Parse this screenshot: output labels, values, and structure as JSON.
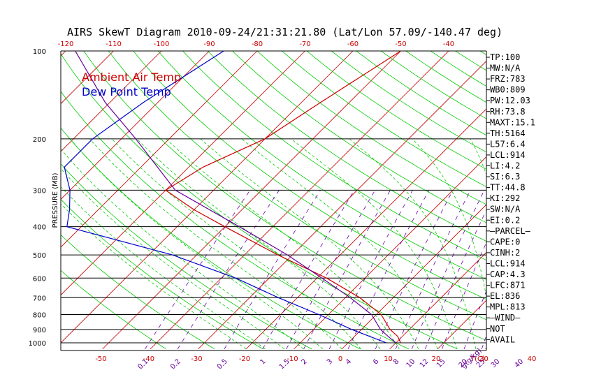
{
  "chart_data": {
    "type": "line",
    "title": "AIRS SkewT Diagram 2010-09-24/21:31:21.80 (Lat/Lon 57.09/-140.47 deg)",
    "ylabel": "PRESSURE (MB)",
    "pressure_ticks": [
      100,
      200,
      300,
      400,
      500,
      600,
      700,
      800,
      900,
      1000
    ],
    "temp_ticks_top": [
      -120,
      -110,
      -100,
      -90,
      -80,
      -70,
      -60,
      -50,
      -40
    ],
    "temp_ticks_bottom": [
      -50,
      -40,
      -30,
      -20,
      -10,
      0,
      10,
      20,
      30,
      40
    ],
    "temp_axis_label": "T(C)",
    "mixing_ratio_ticks": [
      "0.1",
      "0.2",
      "0.5",
      "1",
      "1.5",
      "2",
      "3",
      "4",
      "6",
      "8",
      "10",
      "12",
      "15",
      "20",
      "25",
      "30",
      "40"
    ],
    "mixing_ratio_label": "g(g/kg)",
    "ylim": [
      1050,
      100
    ],
    "legend": {
      "placement": "top-left"
    },
    "series": [
      {
        "name": "Ambient Air Temp",
        "color": "#cc0000",
        "points": [
          {
            "p": 100,
            "t": -50
          },
          {
            "p": 150,
            "t": -56
          },
          {
            "p": 200,
            "t": -60
          },
          {
            "p": 250,
            "t": -67
          },
          {
            "p": 300,
            "t": -70
          },
          {
            "p": 350,
            "t": -60
          },
          {
            "p": 400,
            "t": -50
          },
          {
            "p": 500,
            "t": -33
          },
          {
            "p": 600,
            "t": -18
          },
          {
            "p": 700,
            "t": -7
          },
          {
            "p": 800,
            "t": 1
          },
          {
            "p": 900,
            "t": 6
          },
          {
            "p": 950,
            "t": 9
          },
          {
            "p": 1000,
            "t": 11
          }
        ]
      },
      {
        "name": "Dew Point Temp",
        "color": "#0000cc",
        "points": [
          {
            "p": 100,
            "t": -87
          },
          {
            "p": 150,
            "t": -93
          },
          {
            "p": 200,
            "t": -96
          },
          {
            "p": 250,
            "t": -96
          },
          {
            "p": 300,
            "t": -90
          },
          {
            "p": 350,
            "t": -86
          },
          {
            "p": 400,
            "t": -83
          },
          {
            "p": 500,
            "t": -55
          },
          {
            "p": 600,
            "t": -37
          },
          {
            "p": 700,
            "t": -24
          },
          {
            "p": 800,
            "t": -12
          },
          {
            "p": 900,
            "t": -2
          },
          {
            "p": 1000,
            "t": 8
          }
        ]
      },
      {
        "name": "",
        "color": "#660099",
        "points": [
          {
            "p": 100,
            "t": -118
          },
          {
            "p": 150,
            "t": -101
          },
          {
            "p": 200,
            "t": -87
          },
          {
            "p": 300,
            "t": -68
          },
          {
            "p": 400,
            "t": -47
          },
          {
            "p": 500,
            "t": -31
          },
          {
            "p": 600,
            "t": -19
          },
          {
            "p": 700,
            "t": -9
          },
          {
            "p": 800,
            "t": -1
          },
          {
            "p": 900,
            "t": 4
          },
          {
            "p": 950,
            "t": 7
          },
          {
            "p": 1000,
            "t": 10
          }
        ]
      }
    ]
  },
  "indices": [
    "TP:100",
    "MW:N/A",
    "FRZ:783",
    "WB0:809",
    "PW:12.03",
    "RH:73.8",
    "MAXT:15.1",
    "TH:5164",
    "L57:6.4",
    "LCL:914",
    "LI:4.2",
    "SI:6.3",
    "TT:44.8",
    "KI:292",
    "SW:N/A",
    "EI:0.2",
    "—PARCEL—",
    "CAPE:0",
    "CINH:2",
    "LCL:914",
    "CAP:4.3",
    "LFC:871",
    "EL:836",
    "MPL:813",
    "—WIND—",
    "NOT",
    "AVAIL"
  ],
  "colors": {
    "isotherm": "#cc0000",
    "dry_adiabat": "#00cc00",
    "moist_adiabat": "#00cc00",
    "mixing_ratio": "#6600aa",
    "isobar": "#000000",
    "bottom_temp_tick": "#cc0000",
    "mixing_ratio_tick": "#660099"
  }
}
